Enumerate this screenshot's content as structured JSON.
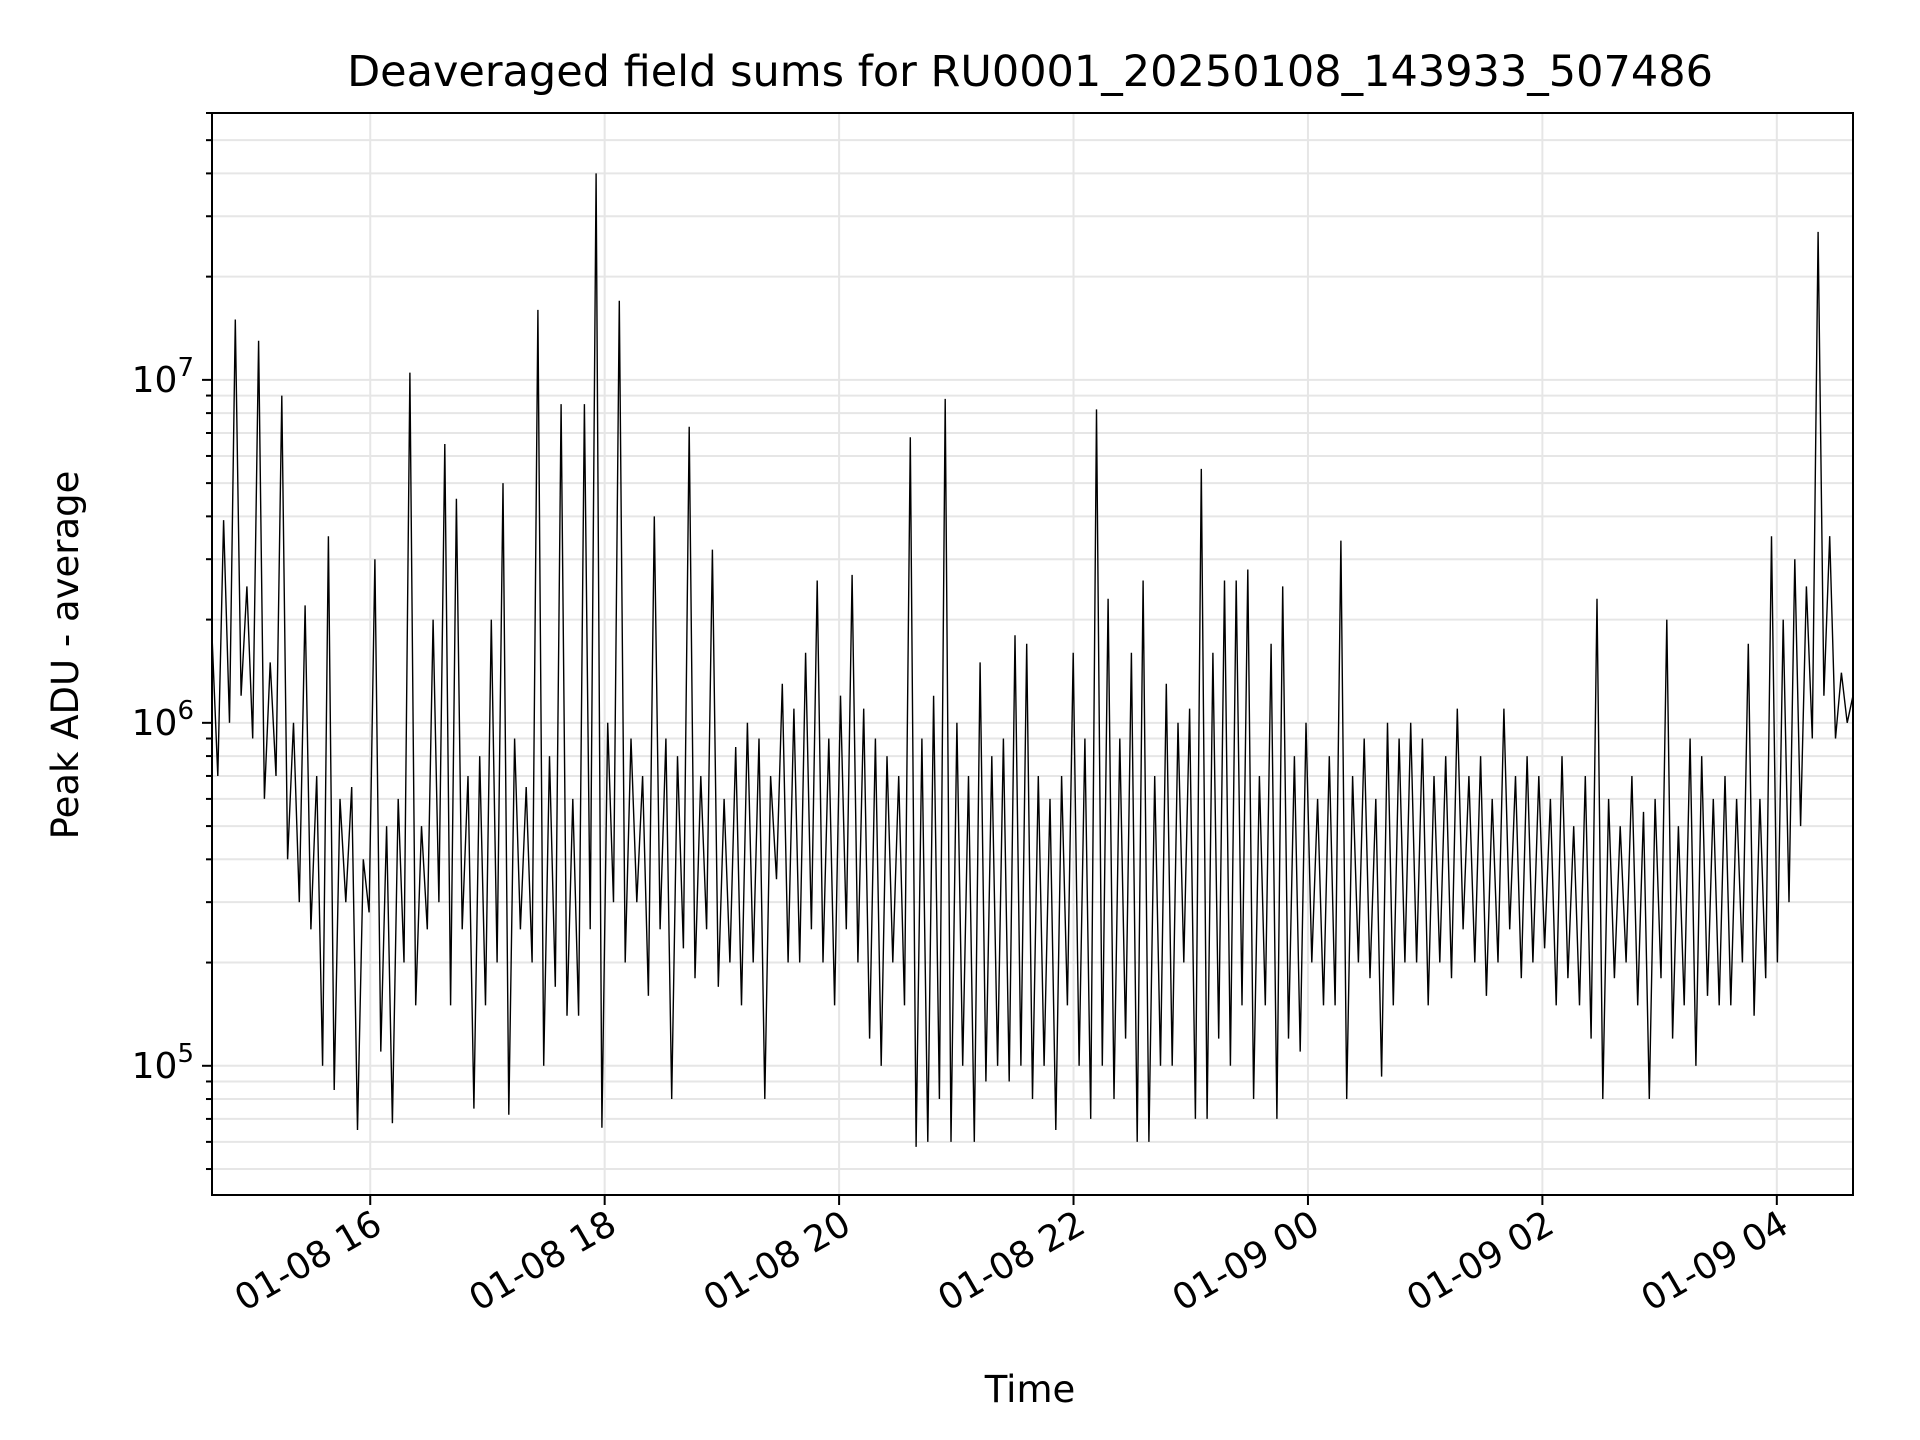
{
  "chart_data": {
    "type": "line",
    "title": "Deaveraged field sums for RU0001_20250108_143933_507486",
    "xlabel": "Time",
    "ylabel": "Peak ADU - average",
    "y_scale": "log",
    "ylim": [
      42000,
      60000000
    ],
    "xlim": [
      "2025-01-08 14:39",
      "2025-01-09 04:39"
    ],
    "grid": true,
    "line_color": "#000000",
    "grid_color": "#e6e6e6",
    "x_ticks": [
      {
        "value": "2025-01-08 16:00",
        "label": "01-08 16"
      },
      {
        "value": "2025-01-08 18:00",
        "label": "01-08 18"
      },
      {
        "value": "2025-01-08 20:00",
        "label": "01-08 20"
      },
      {
        "value": "2025-01-08 22:00",
        "label": "01-08 22"
      },
      {
        "value": "2025-01-09 00:00",
        "label": "01-09 00"
      },
      {
        "value": "2025-01-09 02:00",
        "label": "01-09 02"
      },
      {
        "value": "2025-01-09 04:00",
        "label": "01-09 04"
      }
    ],
    "y_ticks": [
      {
        "value": 100000,
        "base": "10",
        "exp": "5"
      },
      {
        "value": 1000000,
        "base": "10",
        "exp": "6"
      },
      {
        "value": 10000000,
        "base": "10",
        "exp": "7"
      }
    ],
    "series": [
      {
        "x_start": "2025-01-08 14:39",
        "x_end": "2025-01-09 04:39",
        "values": [
          1800000,
          700000,
          3900000,
          1000000,
          15000000,
          1200000,
          2500000,
          900000,
          13000000,
          600000,
          1500000,
          700000,
          9000000,
          400000,
          1000000,
          300000,
          2200000,
          250000,
          700000,
          100000,
          3500000,
          85000,
          600000,
          300000,
          650000,
          65000,
          400000,
          280000,
          3000000,
          110000,
          500000,
          68000,
          600000,
          200000,
          10500000,
          150000,
          500000,
          250000,
          2000000,
          300000,
          6500000,
          150000,
          4500000,
          250000,
          700000,
          75000,
          800000,
          150000,
          2000000,
          200000,
          5000000,
          72000,
          900000,
          250000,
          650000,
          200000,
          16000000,
          100000,
          800000,
          170000,
          8500000,
          140000,
          600000,
          140000,
          8500000,
          250000,
          40000000,
          66000,
          1000000,
          300000,
          17000000,
          200000,
          900000,
          300000,
          700000,
          160000,
          4000000,
          250000,
          900000,
          80000,
          800000,
          220000,
          7300000,
          180000,
          700000,
          250000,
          3200000,
          170000,
          600000,
          200000,
          850000,
          150000,
          1000000,
          200000,
          900000,
          80000,
          700000,
          350000,
          1300000,
          200000,
          1100000,
          200000,
          1600000,
          250000,
          2600000,
          200000,
          900000,
          150000,
          1200000,
          250000,
          2700000,
          200000,
          1100000,
          120000,
          900000,
          100000,
          800000,
          200000,
          700000,
          150000,
          6800000,
          58000,
          900000,
          60000,
          1200000,
          80000,
          8800000,
          60000,
          1000000,
          100000,
          700000,
          60000,
          1500000,
          90000,
          800000,
          100000,
          900000,
          90000,
          1800000,
          100000,
          1700000,
          80000,
          700000,
          100000,
          600000,
          65000,
          700000,
          150000,
          1600000,
          100000,
          900000,
          70000,
          8200000,
          100000,
          2300000,
          80000,
          900000,
          120000,
          1600000,
          60000,
          2600000,
          60000,
          700000,
          100000,
          1300000,
          100000,
          1000000,
          200000,
          1100000,
          70000,
          5500000,
          70000,
          1600000,
          120000,
          2600000,
          100000,
          2600000,
          150000,
          2800000,
          80000,
          700000,
          150000,
          1700000,
          70000,
          2500000,
          120000,
          800000,
          110000,
          1000000,
          200000,
          600000,
          150000,
          800000,
          150000,
          3400000,
          80000,
          700000,
          200000,
          900000,
          180000,
          600000,
          93000,
          1000000,
          150000,
          900000,
          200000,
          1000000,
          200000,
          900000,
          150000,
          700000,
          200000,
          800000,
          180000,
          1100000,
          250000,
          700000,
          200000,
          800000,
          160000,
          600000,
          200000,
          1100000,
          250000,
          700000,
          180000,
          800000,
          200000,
          700000,
          220000,
          600000,
          150000,
          800000,
          180000,
          500000,
          150000,
          700000,
          120000,
          2300000,
          80000,
          600000,
          180000,
          500000,
          200000,
          700000,
          150000,
          550000,
          80000,
          600000,
          180000,
          2000000,
          120000,
          500000,
          150000,
          900000,
          100000,
          800000,
          160000,
          600000,
          150000,
          700000,
          150000,
          600000,
          200000,
          1700000,
          140000,
          600000,
          180000,
          3500000,
          200000,
          2000000,
          300000,
          3000000,
          500000,
          2500000,
          900000,
          27000000,
          1200000,
          3500000,
          900000,
          1400000,
          1000000,
          1200000
        ]
      }
    ]
  }
}
